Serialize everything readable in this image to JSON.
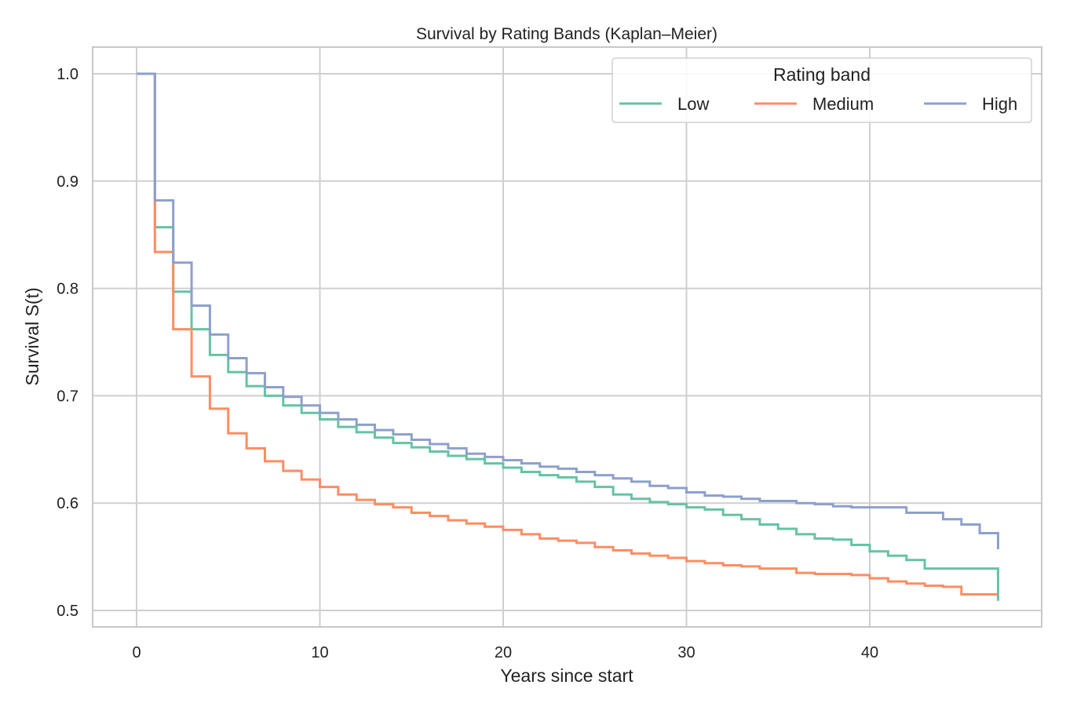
{
  "chart_data": {
    "type": "line",
    "step": "post",
    "title": "Survival by Rating Bands (Kaplan–Meier)",
    "xlabel": "Years since start",
    "ylabel": "Survival S(t)",
    "xlim": [
      -2.4,
      49.4
    ],
    "ylim": [
      0.484,
      1.025
    ],
    "xticks": [
      0,
      10,
      20,
      30,
      40
    ],
    "yticks": [
      0.5,
      0.6,
      0.7,
      0.8,
      0.9,
      1.0
    ],
    "ytick_labels": [
      "0.5",
      "0.6",
      "0.7",
      "0.8",
      "0.9",
      "1.0"
    ],
    "grid": true,
    "legend": {
      "title": "Rating band",
      "placement": "top-right",
      "columns": 3
    },
    "x": [
      0,
      1,
      2,
      3,
      4,
      5,
      6,
      7,
      8,
      9,
      10,
      11,
      12,
      13,
      14,
      15,
      16,
      17,
      18,
      19,
      20,
      21,
      22,
      23,
      24,
      25,
      26,
      27,
      28,
      29,
      30,
      31,
      32,
      33,
      34,
      35,
      36,
      37,
      38,
      39,
      40,
      41,
      42,
      43,
      44,
      45,
      46,
      47
    ],
    "series": [
      {
        "name": "Low",
        "color": "#66c2a5",
        "values": [
          1.0,
          0.857,
          0.797,
          0.762,
          0.738,
          0.722,
          0.709,
          0.7,
          0.691,
          0.684,
          0.678,
          0.671,
          0.666,
          0.661,
          0.656,
          0.652,
          0.648,
          0.644,
          0.641,
          0.637,
          0.633,
          0.629,
          0.626,
          0.624,
          0.62,
          0.615,
          0.608,
          0.604,
          0.601,
          0.599,
          0.596,
          0.594,
          0.589,
          0.585,
          0.58,
          0.576,
          0.571,
          0.567,
          0.566,
          0.561,
          0.555,
          0.551,
          0.547,
          0.539,
          0.539,
          0.539,
          0.539,
          0.509
        ]
      },
      {
        "name": "Medium",
        "color": "#fc8d62",
        "values": [
          1.0,
          0.834,
          0.762,
          0.718,
          0.688,
          0.665,
          0.651,
          0.639,
          0.63,
          0.622,
          0.615,
          0.608,
          0.603,
          0.599,
          0.596,
          0.591,
          0.588,
          0.584,
          0.581,
          0.578,
          0.575,
          0.571,
          0.567,
          0.565,
          0.563,
          0.559,
          0.556,
          0.553,
          0.551,
          0.549,
          0.546,
          0.544,
          0.542,
          0.541,
          0.539,
          0.539,
          0.535,
          0.534,
          0.534,
          0.533,
          0.53,
          0.527,
          0.525,
          0.523,
          0.522,
          0.515,
          0.515,
          0.515
        ]
      },
      {
        "name": "High",
        "color": "#8da0cb",
        "values": [
          1.0,
          0.882,
          0.824,
          0.784,
          0.757,
          0.735,
          0.721,
          0.708,
          0.699,
          0.691,
          0.684,
          0.678,
          0.673,
          0.668,
          0.664,
          0.659,
          0.655,
          0.651,
          0.646,
          0.643,
          0.64,
          0.637,
          0.634,
          0.632,
          0.629,
          0.626,
          0.623,
          0.62,
          0.616,
          0.614,
          0.61,
          0.607,
          0.606,
          0.604,
          0.602,
          0.602,
          0.6,
          0.599,
          0.597,
          0.596,
          0.596,
          0.596,
          0.591,
          0.591,
          0.585,
          0.58,
          0.572,
          0.557
        ]
      }
    ]
  }
}
